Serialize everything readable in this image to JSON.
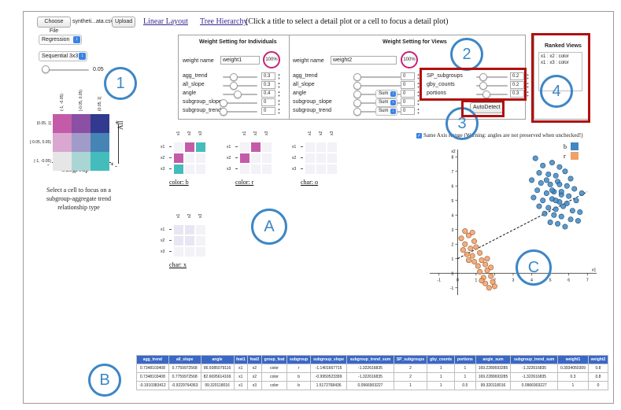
{
  "top": {
    "choose_file": "Choose File",
    "file_name": "syntheti...ata.csv",
    "upload": "Upload",
    "linear_layout": "Linear Layout",
    "tree_hierarchy": "Tree Hierarchy",
    "instruction": "(Click a title to select a detail plot or a cell to focus a detail plot)"
  },
  "left": {
    "regression_select": "Regression",
    "colormap_select": "Sequential 3x3",
    "threshold_value": "0.05",
    "threshold_fraction": 0.0,
    "col_labels": [
      "(-1, -0.05)",
      "[-0.05, 0.05)",
      "(0.05, 1]"
    ],
    "row_labels": [
      "(0.05, 1]",
      "[-0.05, 0.05)",
      "(-1, -0.05)"
    ],
    "colors": [
      [
        "#c45ba8",
        "#8b4fa3",
        "#313a8e"
      ],
      [
        "#d9a7cf",
        "#a19bc9",
        "#4684b5"
      ],
      [
        "#e6e6e6",
        "#a9d6d4",
        "#45bcbc"
      ]
    ],
    "y_axis_label": "All",
    "x_axis_label": "Subgroup",
    "minus": "-",
    "plus": "+",
    "plus_top": "+",
    "minus_bottom": "-",
    "caption": "Select a cell to focus on a subgroup-aggregate trend relationship type"
  },
  "matrices": [
    {
      "label": "color: b",
      "cols": [
        "x1",
        "x2",
        "x3"
      ],
      "rows": [
        "x1",
        "x2",
        "x3"
      ],
      "cells": [
        [
          "#f2f2f7",
          "#c45ba8",
          "#45bcbc"
        ],
        [
          "#c45ba8",
          "#f2f2f7",
          "#f2f2f7"
        ],
        [
          "#45bcbc",
          "#f2f2f7",
          "#f2f2f7"
        ]
      ]
    },
    {
      "label": "color: r",
      "cols": [
        "x1",
        "x2",
        "x3"
      ],
      "rows": [
        "x1",
        "x2",
        "x3"
      ],
      "cells": [
        [
          "#f2f2f7",
          "#c45ba8",
          "#f2f2f7"
        ],
        [
          "#c45ba8",
          "#f2f2f7",
          "#f2f2f7"
        ],
        [
          "#f2f2f7",
          "#f2f2f7",
          "#f2f2f7"
        ]
      ]
    },
    {
      "label": "char: o",
      "cols": [
        "x1",
        "x2",
        "x3"
      ],
      "rows": [
        "x1",
        "x2",
        "x3"
      ],
      "cells": [
        [
          "#f2f2f7",
          "#f2f2f7",
          "#f2f2f7"
        ],
        [
          "#f2f2f7",
          "#f2f2f7",
          "#f2f2f7"
        ],
        [
          "#f2f2f7",
          "#f2f2f7",
          "#f2f2f7"
        ]
      ]
    },
    {
      "label": "char: x",
      "cols": [
        "x1",
        "x2",
        "x3"
      ],
      "rows": [
        "x1",
        "x2",
        "x3"
      ],
      "cells": [
        [
          "#e9e6f3",
          "#e9e6f3",
          "#f2f2f7"
        ],
        [
          "#e9e6f3",
          "#e9e6f3",
          "#f2f2f7"
        ],
        [
          "#f2f2f7",
          "#f2f2f7",
          "#f2f2f7"
        ]
      ]
    }
  ],
  "individuals": {
    "title": "Weight Setting for Individuals",
    "weight_name_label": "weight name",
    "weight_name_value": "weight1",
    "percent": "100%",
    "rows": [
      {
        "label": "agg_trend",
        "value": "0.3",
        "level": 0.3
      },
      {
        "label": "all_slope",
        "value": "0.3",
        "level": 0.3
      },
      {
        "label": "angle",
        "value": "0.4",
        "level": 0.4
      },
      {
        "label": "subgroup_slope",
        "value": "0",
        "level": 0
      },
      {
        "label": "subgroup_trend",
        "value": "0",
        "level": 0
      }
    ]
  },
  "views": {
    "title": "Weight Setting for Views",
    "weight_name_label": "weight name",
    "weight_name_value": "weight2",
    "percent": "100%",
    "rows": [
      {
        "label": "agg_trend",
        "value": "0",
        "level": 0,
        "select": ""
      },
      {
        "label": "all_slope",
        "value": "0",
        "level": 0,
        "select": ""
      },
      {
        "label": "angle",
        "value": "0",
        "level": 0,
        "select": "Sum"
      },
      {
        "label": "subgroup_slope",
        "value": "0",
        "level": 0,
        "select": "Sum"
      },
      {
        "label": "subgroup_trend",
        "value": "0",
        "level": 0,
        "select": "Sum"
      }
    ],
    "right_rows": [
      {
        "label": "SP_subgroups",
        "value": "0.2",
        "level": 0.2
      },
      {
        "label": "gby_counts",
        "value": "0.2",
        "level": 0.2
      },
      {
        "label": "portions",
        "value": "0.3",
        "level": 0.3
      }
    ],
    "autodetect": "AutoDetect"
  },
  "ranked": {
    "title": "Ranked Views",
    "items": [
      "x1 : x2 : color",
      "x1 : x3 : color"
    ]
  },
  "scatter": {
    "checkbox_label": "Same Axis Range (Warning: angles are not preserved when unchecked!)",
    "checked": true,
    "legend": [
      {
        "name": "b",
        "color": "#3f88c2"
      },
      {
        "name": "r",
        "color": "#f0a06a"
      }
    ],
    "y_axis_title": "x2",
    "x_axis_title": "x1"
  },
  "chart_data": {
    "type": "scatter",
    "xlabel": "x1",
    "ylabel": "x2",
    "xlim": [
      -1.5,
      7.5
    ],
    "ylim": [
      -1.5,
      8.5
    ],
    "xticks": [
      -1,
      0,
      1,
      2,
      3,
      4,
      5,
      6,
      7
    ],
    "yticks": [
      -1,
      0,
      1,
      2,
      3,
      4,
      5,
      6,
      7,
      8
    ],
    "series": [
      {
        "name": "b",
        "color": "#3f88c2",
        "points": [
          [
            4.2,
            7.9
          ],
          [
            4.6,
            7.4
          ],
          [
            5.1,
            7.6
          ],
          [
            5.5,
            7.3
          ],
          [
            4.4,
            6.9
          ],
          [
            4.9,
            6.8
          ],
          [
            5.3,
            6.7
          ],
          [
            5.8,
            7.0
          ],
          [
            6.1,
            6.5
          ],
          [
            4.0,
            6.4
          ],
          [
            4.5,
            6.2
          ],
          [
            5.0,
            6.1
          ],
          [
            5.4,
            6.3
          ],
          [
            5.9,
            6.0
          ],
          [
            6.3,
            5.8
          ],
          [
            4.3,
            5.7
          ],
          [
            4.8,
            5.5
          ],
          [
            5.2,
            5.6
          ],
          [
            5.6,
            5.4
          ],
          [
            6.0,
            5.3
          ],
          [
            4.1,
            5.2
          ],
          [
            4.6,
            5.0
          ],
          [
            5.1,
            5.1
          ],
          [
            5.5,
            4.9
          ],
          [
            5.9,
            4.8
          ],
          [
            6.4,
            5.0
          ],
          [
            4.4,
            4.6
          ],
          [
            4.9,
            4.5
          ],
          [
            5.3,
            4.4
          ],
          [
            5.7,
            4.6
          ],
          [
            6.2,
            4.3
          ],
          [
            4.7,
            4.1
          ],
          [
            5.2,
            4.0
          ],
          [
            5.6,
            3.9
          ],
          [
            6.1,
            3.7
          ],
          [
            6.6,
            4.2
          ],
          [
            5.0,
            3.5
          ],
          [
            5.4,
            3.4
          ],
          [
            5.8,
            3.2
          ],
          [
            6.5,
            3.6
          ],
          [
            5.1,
            5.7
          ],
          [
            5.5,
            6.1
          ],
          [
            4.8,
            6.4
          ],
          [
            6.7,
            5.5
          ],
          [
            5.3,
            5.0
          ],
          [
            5.6,
            5.6
          ]
        ]
      },
      {
        "name": "r",
        "color": "#f0a06a",
        "points": [
          [
            0.2,
            2.4
          ],
          [
            0.4,
            2.0
          ],
          [
            0.6,
            2.6
          ],
          [
            0.9,
            2.2
          ],
          [
            0.3,
            1.6
          ],
          [
            0.7,
            1.7
          ],
          [
            1.0,
            1.8
          ],
          [
            0.5,
            1.3
          ],
          [
            0.8,
            1.2
          ],
          [
            1.2,
            1.4
          ],
          [
            0.9,
            0.8
          ],
          [
            1.3,
            0.9
          ],
          [
            1.1,
            0.5
          ],
          [
            1.5,
            0.6
          ],
          [
            1.2,
            0.1
          ],
          [
            1.6,
            0.2
          ],
          [
            1.4,
            -0.3
          ],
          [
            1.8,
            -0.2
          ],
          [
            1.5,
            -0.7
          ],
          [
            1.9,
            -0.6
          ],
          [
            1.7,
            -1.0
          ],
          [
            2.0,
            -0.9
          ],
          [
            1.3,
            -0.5
          ],
          [
            0.6,
            0.9
          ],
          [
            0.4,
            2.9
          ],
          [
            0.8,
            2.8
          ],
          [
            1.6,
            1.0
          ],
          [
            1.8,
            0.4
          ]
        ]
      }
    ],
    "trend_line": [
      [
        0.0,
        1.0
      ],
      [
        7.0,
        5.6
      ]
    ]
  },
  "table": {
    "headers": [
      "agg_trend",
      "all_slope",
      "angle",
      "feat1",
      "feat2",
      "group_feat",
      "subgroup",
      "subgroup_slope",
      "subgroup_trend_sum",
      "SP_subgroups",
      "gby_counts",
      "portions",
      "angle_sum",
      "subgroup_trend_sum",
      "weight1",
      "weight2"
    ],
    "rows": [
      [
        "0.7348103408",
        "0.7759972568",
        "86.5085079116",
        "x1",
        "x2",
        "color",
        "r",
        "-1.1401667715",
        "-1.322616835",
        "2",
        "1",
        "1",
        "169.2280693285",
        "-1.322616835",
        "0.3934050309",
        "0.8"
      ],
      [
        "0.7348103408",
        "0.7759972568",
        "82.6695614169",
        "x1",
        "x2",
        "color",
        "b",
        "-0.9950523399",
        "-1.322616835",
        "2",
        "1",
        "1",
        "169.2280693285",
        "-1.322616835",
        "0.3",
        "0.8"
      ],
      [
        "-0.1910383412",
        "-0.9229764363",
        "99.320118016",
        "x1",
        "x3",
        "color",
        "b",
        "1.5172768436",
        "0.0966903227",
        "1",
        "1",
        "0.5",
        "99.320118016",
        "0.0966903227",
        "1",
        "0"
      ]
    ]
  },
  "annotations": {
    "n1": "1",
    "n2": "2",
    "n3": "3",
    "n4": "4",
    "A": "A",
    "B": "B",
    "C": "C"
  }
}
